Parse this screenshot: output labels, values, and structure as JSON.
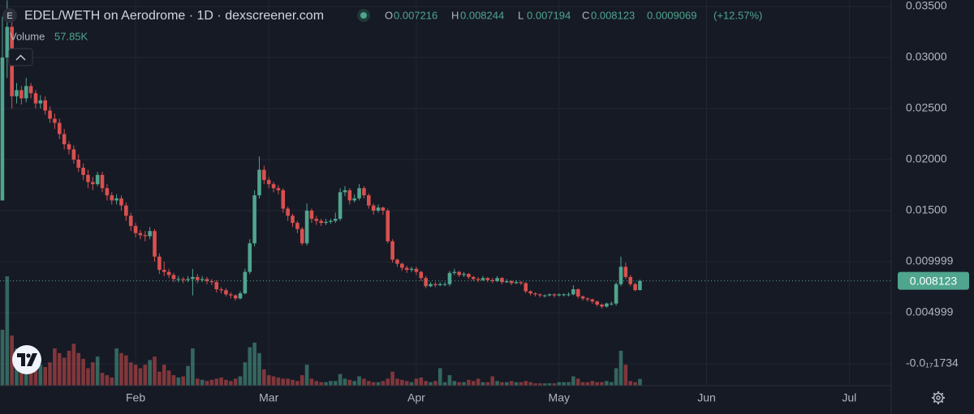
{
  "chart_data": {
    "type": "candlestick",
    "title": "EDEL/WETH on Aerodrome · 1D · dexscreener.com",
    "icon_letter": "E",
    "ohlc_letters": [
      "O",
      "H",
      "L",
      "C"
    ],
    "change": 0.0009069,
    "change_label": "(+12.57%)",
    "volume_label": "Volume",
    "volume_value_label": "57.85K",
    "up_color": "#4fa58e",
    "down_color": "#d9504f",
    "grid": true,
    "xlim": [
      -0.5,
      186.3
    ],
    "xticks": [
      {
        "value": 28,
        "label": "Feb"
      },
      {
        "value": 56,
        "label": "Mar"
      },
      {
        "value": 87,
        "label": "Apr"
      },
      {
        "value": 117,
        "label": "May"
      },
      {
        "value": 148,
        "label": "Jun"
      },
      {
        "value": 178,
        "label": "Jul"
      }
    ],
    "ylim": [
      -0.00214,
      0.03563
    ],
    "yticks": [
      {
        "value": -1.734e-18,
        "label": "-0.0₁₇1734"
      },
      0.004999,
      0.009999,
      {
        "value": 0.015,
        "label": "0.01500"
      },
      {
        "value": 0.02,
        "label": "0.02000"
      },
      {
        "value": 0.025,
        "label": "0.02500"
      },
      {
        "value": 0.03,
        "label": "0.03000"
      },
      {
        "value": 0.035,
        "label": "0.03500"
      }
    ],
    "open": [
      0.016,
      0.03,
      0.033,
      0.0262,
      0.0268,
      0.026,
      0.0272,
      0.0265,
      0.0255,
      0.0258,
      0.0248,
      0.024,
      0.0236,
      0.0225,
      0.0215,
      0.021,
      0.02,
      0.0192,
      0.0185,
      0.0178,
      0.0176,
      0.0185,
      0.0172,
      0.0165,
      0.016,
      0.0162,
      0.0155,
      0.0145,
      0.0135,
      0.0128,
      0.0126,
      0.0125,
      0.013,
      0.0105,
      0.0092,
      0.009,
      0.0087,
      0.0083,
      0.0083,
      0.0082,
      0.0083,
      0.0085,
      0.0082,
      0.0083,
      0.0081,
      0.008,
      0.0073,
      0.0072,
      0.0068,
      0.0067,
      0.0064,
      0.0069,
      0.009,
      0.0118,
      0.0165,
      0.019,
      0.018,
      0.0176,
      0.0172,
      0.017,
      0.0152,
      0.0145,
      0.0138,
      0.0132,
      0.0118,
      0.015,
      0.0142,
      0.014,
      0.0138,
      0.0139,
      0.014,
      0.0142,
      0.0168,
      0.017,
      0.016,
      0.0162,
      0.0172,
      0.0165,
      0.0155,
      0.015,
      0.0153,
      0.015,
      0.012,
      0.0102,
      0.0098,
      0.0094,
      0.0092,
      0.0093,
      0.009,
      0.0084,
      0.0076,
      0.0078,
      0.0077,
      0.0078,
      0.0078,
      0.0089,
      0.009,
      0.0087,
      0.0088,
      0.0085,
      0.0083,
      0.0082,
      0.0084,
      0.0082,
      0.0081,
      0.0084,
      0.008,
      0.0081,
      0.0079,
      0.008,
      0.0079,
      0.0071,
      0.0069,
      0.0068,
      0.0067,
      0.0067,
      0.0068,
      0.0067,
      0.0068,
      0.0068,
      0.0068,
      0.0073,
      0.0066,
      0.0064,
      0.0063,
      0.0061,
      0.0058,
      0.0056,
      0.0059,
      0.0059,
      0.0078,
      0.0095,
      0.0085,
      0.0078,
      0.007216
    ],
    "high": [
      0.034,
      0.0356,
      0.0335,
      0.0275,
      0.0272,
      0.028,
      0.0275,
      0.0268,
      0.0263,
      0.0262,
      0.0252,
      0.0245,
      0.024,
      0.023,
      0.0218,
      0.0214,
      0.0205,
      0.0196,
      0.019,
      0.0183,
      0.0188,
      0.0188,
      0.0176,
      0.0168,
      0.0166,
      0.0165,
      0.0158,
      0.0148,
      0.0138,
      0.0131,
      0.013,
      0.0134,
      0.0132,
      0.0108,
      0.01,
      0.0093,
      0.0089,
      0.0086,
      0.0085,
      0.0086,
      0.0093,
      0.0088,
      0.0086,
      0.0085,
      0.0083,
      0.0082,
      0.0075,
      0.0074,
      0.007,
      0.0068,
      0.0071,
      0.0093,
      0.0122,
      0.017,
      0.0203,
      0.0194,
      0.0183,
      0.0178,
      0.0175,
      0.0172,
      0.0154,
      0.0147,
      0.014,
      0.0134,
      0.0157,
      0.0152,
      0.0145,
      0.0142,
      0.0142,
      0.0142,
      0.0148,
      0.0172,
      0.0174,
      0.0172,
      0.0166,
      0.0176,
      0.0174,
      0.0167,
      0.0157,
      0.0156,
      0.0154,
      0.0152,
      0.0122,
      0.0103,
      0.0099,
      0.0096,
      0.0095,
      0.0095,
      0.0091,
      0.0086,
      0.008,
      0.008,
      0.008,
      0.008,
      0.0091,
      0.0093,
      0.0091,
      0.009,
      0.0089,
      0.0086,
      0.0085,
      0.0086,
      0.0085,
      0.0084,
      0.0086,
      0.0085,
      0.0083,
      0.0082,
      0.0082,
      0.0081,
      0.008,
      0.0072,
      0.007,
      0.0069,
      0.0068,
      0.0069,
      0.0069,
      0.0069,
      0.0069,
      0.007,
      0.0077,
      0.0074,
      0.0067,
      0.0065,
      0.0064,
      0.0062,
      0.0059,
      0.006,
      0.0061,
      0.008,
      0.0105,
      0.0099,
      0.0087,
      0.008,
      0.008244
    ],
    "low": [
      0.016,
      0.028,
      0.025,
      0.0255,
      0.0254,
      0.0256,
      0.026,
      0.025,
      0.025,
      0.0244,
      0.0236,
      0.023,
      0.022,
      0.021,
      0.0205,
      0.0196,
      0.0188,
      0.018,
      0.0172,
      0.017,
      0.0174,
      0.0168,
      0.016,
      0.0156,
      0.0156,
      0.015,
      0.014,
      0.013,
      0.0124,
      0.0122,
      0.012,
      0.0122,
      0.01,
      0.0088,
      0.0086,
      0.0084,
      0.008,
      0.008,
      0.0079,
      0.008,
      0.0067,
      0.0079,
      0.008,
      0.0078,
      0.0077,
      0.007,
      0.0069,
      0.0066,
      0.0064,
      0.0062,
      0.0063,
      0.0068,
      0.0088,
      0.0115,
      0.0162,
      0.0176,
      0.0172,
      0.0168,
      0.0166,
      0.0148,
      0.014,
      0.0134,
      0.0128,
      0.0116,
      0.0116,
      0.0138,
      0.0136,
      0.0135,
      0.0136,
      0.0137,
      0.0138,
      0.014,
      0.0164,
      0.0156,
      0.0158,
      0.016,
      0.0162,
      0.0152,
      0.0146,
      0.0148,
      0.0146,
      0.0118,
      0.0099,
      0.0095,
      0.0091,
      0.0089,
      0.009,
      0.0087,
      0.0081,
      0.0074,
      0.0075,
      0.0075,
      0.0076,
      0.0076,
      0.0076,
      0.0087,
      0.0085,
      0.0085,
      0.0083,
      0.0081,
      0.008,
      0.0081,
      0.008,
      0.0079,
      0.008,
      0.0078,
      0.0079,
      0.0077,
      0.0078,
      0.0077,
      0.0069,
      0.0067,
      0.0066,
      0.0065,
      0.0065,
      0.0066,
      0.0065,
      0.0066,
      0.0066,
      0.0066,
      0.0067,
      0.0064,
      0.0062,
      0.0061,
      0.0059,
      0.0056,
      0.0054,
      0.0055,
      0.0057,
      0.0057,
      0.0076,
      0.0083,
      0.0076,
      0.0071,
      0.007194
    ],
    "close": [
      0.03,
      0.033,
      0.0262,
      0.0268,
      0.026,
      0.0272,
      0.0265,
      0.0255,
      0.0258,
      0.0248,
      0.024,
      0.0236,
      0.0225,
      0.0215,
      0.021,
      0.02,
      0.0192,
      0.0185,
      0.0178,
      0.0176,
      0.0185,
      0.0172,
      0.0165,
      0.016,
      0.0162,
      0.0155,
      0.0145,
      0.0135,
      0.0128,
      0.0126,
      0.0125,
      0.013,
      0.0105,
      0.0092,
      0.009,
      0.0087,
      0.0083,
      0.0083,
      0.0082,
      0.0083,
      0.0085,
      0.0082,
      0.0083,
      0.0081,
      0.008,
      0.0073,
      0.0072,
      0.0068,
      0.0067,
      0.0064,
      0.0069,
      0.009,
      0.0118,
      0.0165,
      0.019,
      0.018,
      0.0176,
      0.0172,
      0.017,
      0.0152,
      0.0145,
      0.0138,
      0.0132,
      0.0118,
      0.015,
      0.0142,
      0.014,
      0.0138,
      0.0139,
      0.014,
      0.0142,
      0.0168,
      0.017,
      0.016,
      0.0162,
      0.0172,
      0.0165,
      0.0155,
      0.015,
      0.0153,
      0.015,
      0.012,
      0.0102,
      0.0098,
      0.0094,
      0.0092,
      0.0093,
      0.009,
      0.0084,
      0.0076,
      0.0078,
      0.0077,
      0.0078,
      0.0078,
      0.0089,
      0.009,
      0.0087,
      0.0088,
      0.0085,
      0.0083,
      0.0082,
      0.0084,
      0.0082,
      0.0081,
      0.0084,
      0.008,
      0.0081,
      0.0079,
      0.008,
      0.0079,
      0.0071,
      0.0069,
      0.0068,
      0.0067,
      0.0067,
      0.0068,
      0.0067,
      0.0068,
      0.0068,
      0.0068,
      0.0073,
      0.0066,
      0.0064,
      0.0063,
      0.0061,
      0.0058,
      0.0056,
      0.0059,
      0.0059,
      0.0078,
      0.0095,
      0.0085,
      0.0078,
      0.007216,
      0.008123
    ],
    "volume": [
      480000,
      940000,
      430000,
      320000,
      260000,
      300000,
      250000,
      200000,
      180000,
      160000,
      200000,
      320000,
      280000,
      240000,
      300000,
      360000,
      280000,
      230000,
      150000,
      200000,
      250000,
      110000,
      90000,
      70000,
      320000,
      280000,
      260000,
      200000,
      180000,
      150000,
      180000,
      220000,
      250000,
      120000,
      180000,
      130000,
      90000,
      70000,
      80000,
      170000,
      320000,
      60000,
      50000,
      40000,
      50000,
      60000,
      70000,
      50000,
      40000,
      60000,
      80000,
      200000,
      330000,
      370000,
      280000,
      140000,
      90000,
      80000,
      70000,
      60000,
      60000,
      50000,
      40000,
      90000,
      180000,
      60000,
      40000,
      30000,
      30000,
      40000,
      40000,
      100000,
      60000,
      50000,
      40000,
      80000,
      60000,
      40000,
      30000,
      30000,
      40000,
      60000,
      120000,
      60000,
      50000,
      40000,
      30000,
      60000,
      70000,
      40000,
      30000,
      40000,
      150000,
      30000,
      90000,
      40000,
      30000,
      30000,
      50000,
      40000,
      60000,
      30000,
      30000,
      80000,
      40000,
      30000,
      30000,
      40000,
      30000,
      30000,
      40000,
      30000,
      20000,
      20000,
      20000,
      20000,
      20000,
      30000,
      30000,
      30000,
      80000,
      60000,
      30000,
      30000,
      40000,
      30000,
      30000,
      40000,
      30000,
      150000,
      300000,
      180000,
      40000,
      30000,
      57850
    ]
  }
}
